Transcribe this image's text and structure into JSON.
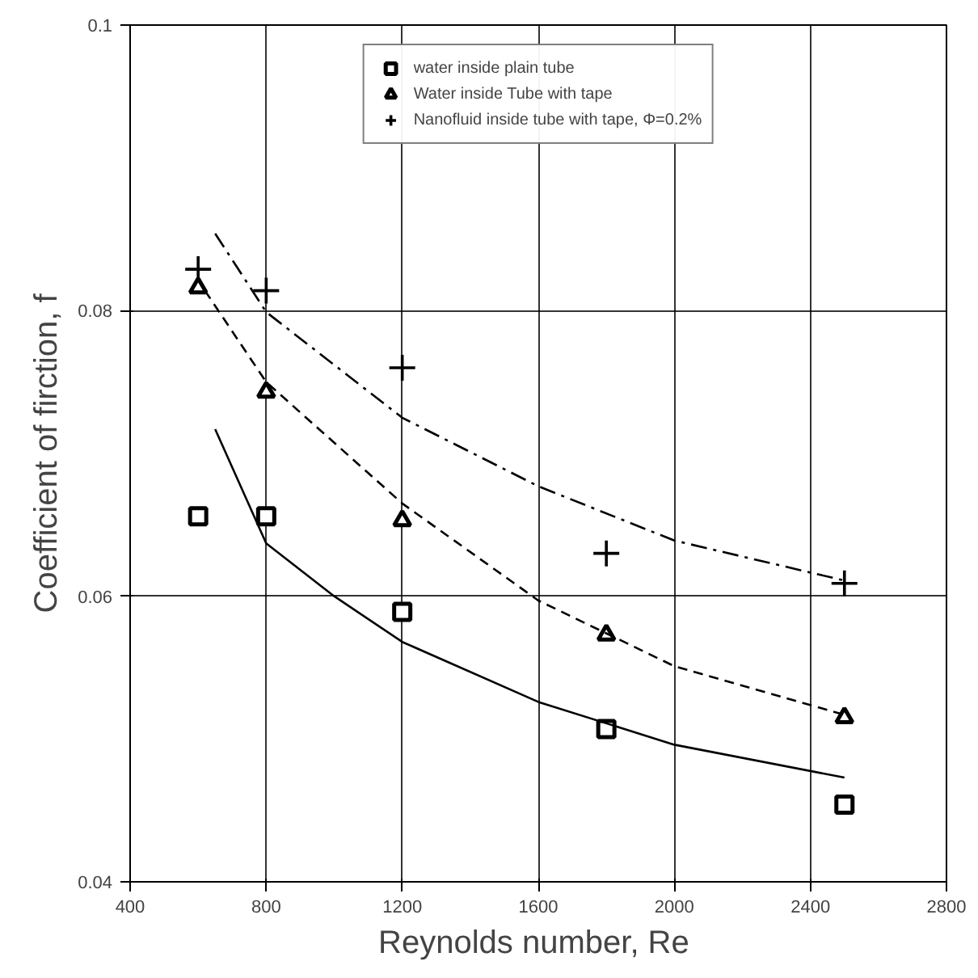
{
  "chart_data": {
    "type": "scatter",
    "xlabel": "Reynolds number,  Re",
    "ylabel": "Coefficient of firction, f",
    "x": [
      600,
      800,
      1200,
      1800,
      2500
    ],
    "series": [
      {
        "name": "water inside plain tube",
        "color": "#000000",
        "marker": "square",
        "values": [
          0.0656,
          0.0656,
          0.0589,
          0.0507,
          0.0454
        ]
      },
      {
        "name": "Water inside Tube with tape",
        "color": "#000000",
        "marker": "triangle",
        "values": [
          0.0816,
          0.0743,
          0.0653,
          0.0573,
          0.0515
        ]
      },
      {
        "name": "Nanofluid inside tube with tape, Φ=0.2%",
        "color": "#000000",
        "marker": "cross",
        "values": [
          0.0829,
          0.0814,
          0.076,
          0.063,
          0.0609
        ]
      },
      {
        "type": "line",
        "color": "#000000",
        "line_style": "solid",
        "marker": "none",
        "x": [
          650,
          800,
          1000,
          1200,
          1600,
          2000,
          2500
        ],
        "values": [
          0.0717,
          0.0637,
          0.06,
          0.0568,
          0.0526,
          0.0496,
          0.0473
        ]
      },
      {
        "type": "line",
        "color": "#000000",
        "line_style": "dashed",
        "marker": "none",
        "x": [
          620,
          800,
          1200,
          1600,
          2000,
          2500
        ],
        "values": [
          0.0814,
          0.075,
          0.0665,
          0.0597,
          0.0551,
          0.0517
        ]
      },
      {
        "type": "line",
        "color": "#000000",
        "line_style": "dashdot",
        "marker": "none",
        "x": [
          650,
          800,
          1200,
          1600,
          2000,
          2500
        ],
        "values": [
          0.0854,
          0.0799,
          0.0725,
          0.0677,
          0.0639,
          0.0611
        ]
      }
    ],
    "xlim": [
      400,
      2800
    ],
    "xticks": [
      400,
      800,
      1200,
      1600,
      2000,
      2400,
      2800
    ],
    "ylim": [
      0.04,
      0.1
    ],
    "yticks": [
      0.04,
      0.06,
      0.08,
      0.1
    ],
    "grid": true,
    "legend": "top"
  }
}
